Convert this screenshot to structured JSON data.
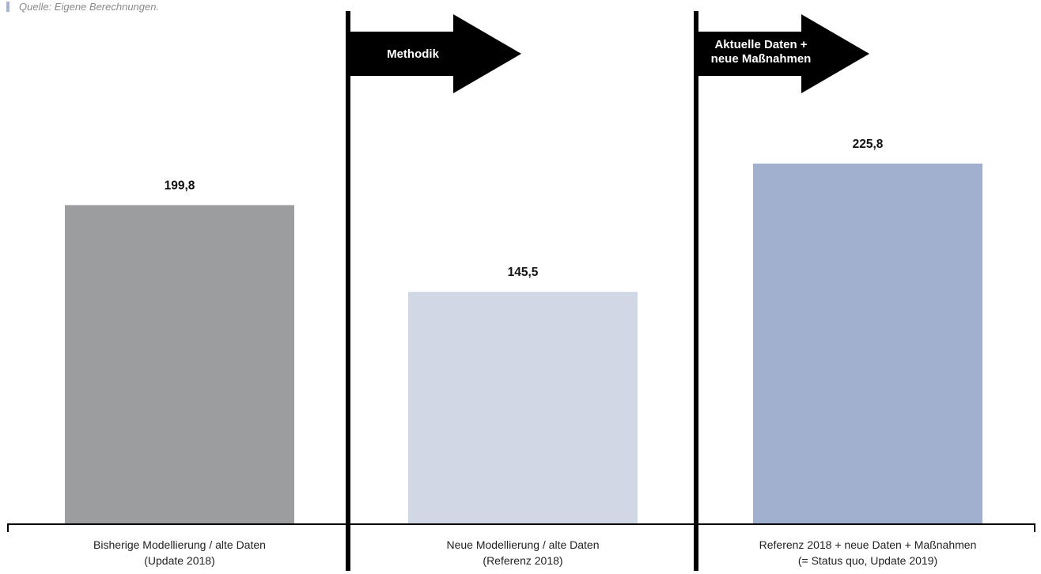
{
  "source": "Quelle: Eigene Berechnungen.",
  "colors": {
    "bar_1": "#9c9d9f",
    "bar_2": "#d0d8e5",
    "bar_3": "#a1b0cf",
    "axis": "#000000",
    "source_marker": "#a9b4cc"
  },
  "chart_data": {
    "type": "bar",
    "categories": [
      [
        "Bisherige Modellierung / alte Daten",
        "(Update 2018)"
      ],
      [
        "Neue Modellierung / alte Daten",
        "(Referenz 2018)"
      ],
      [
        "Referenz 2018 + neue Daten + Maßnahmen",
        "(= Status quo, Update 2019)"
      ]
    ],
    "values": [
      199.8,
      145.5,
      225.8
    ],
    "value_labels": [
      "199,8",
      "145,5",
      "225,8"
    ],
    "annotations": [
      {
        "lines": [
          "Methodik"
        ],
        "between": [
          0,
          1
        ]
      },
      {
        "lines": [
          "Aktuelle Daten +",
          "neue Maßnahmen"
        ],
        "between": [
          1,
          2
        ]
      }
    ],
    "title": "",
    "xlabel": "",
    "ylabel": "",
    "ylim": [
      0,
      240
    ],
    "grid": false
  }
}
